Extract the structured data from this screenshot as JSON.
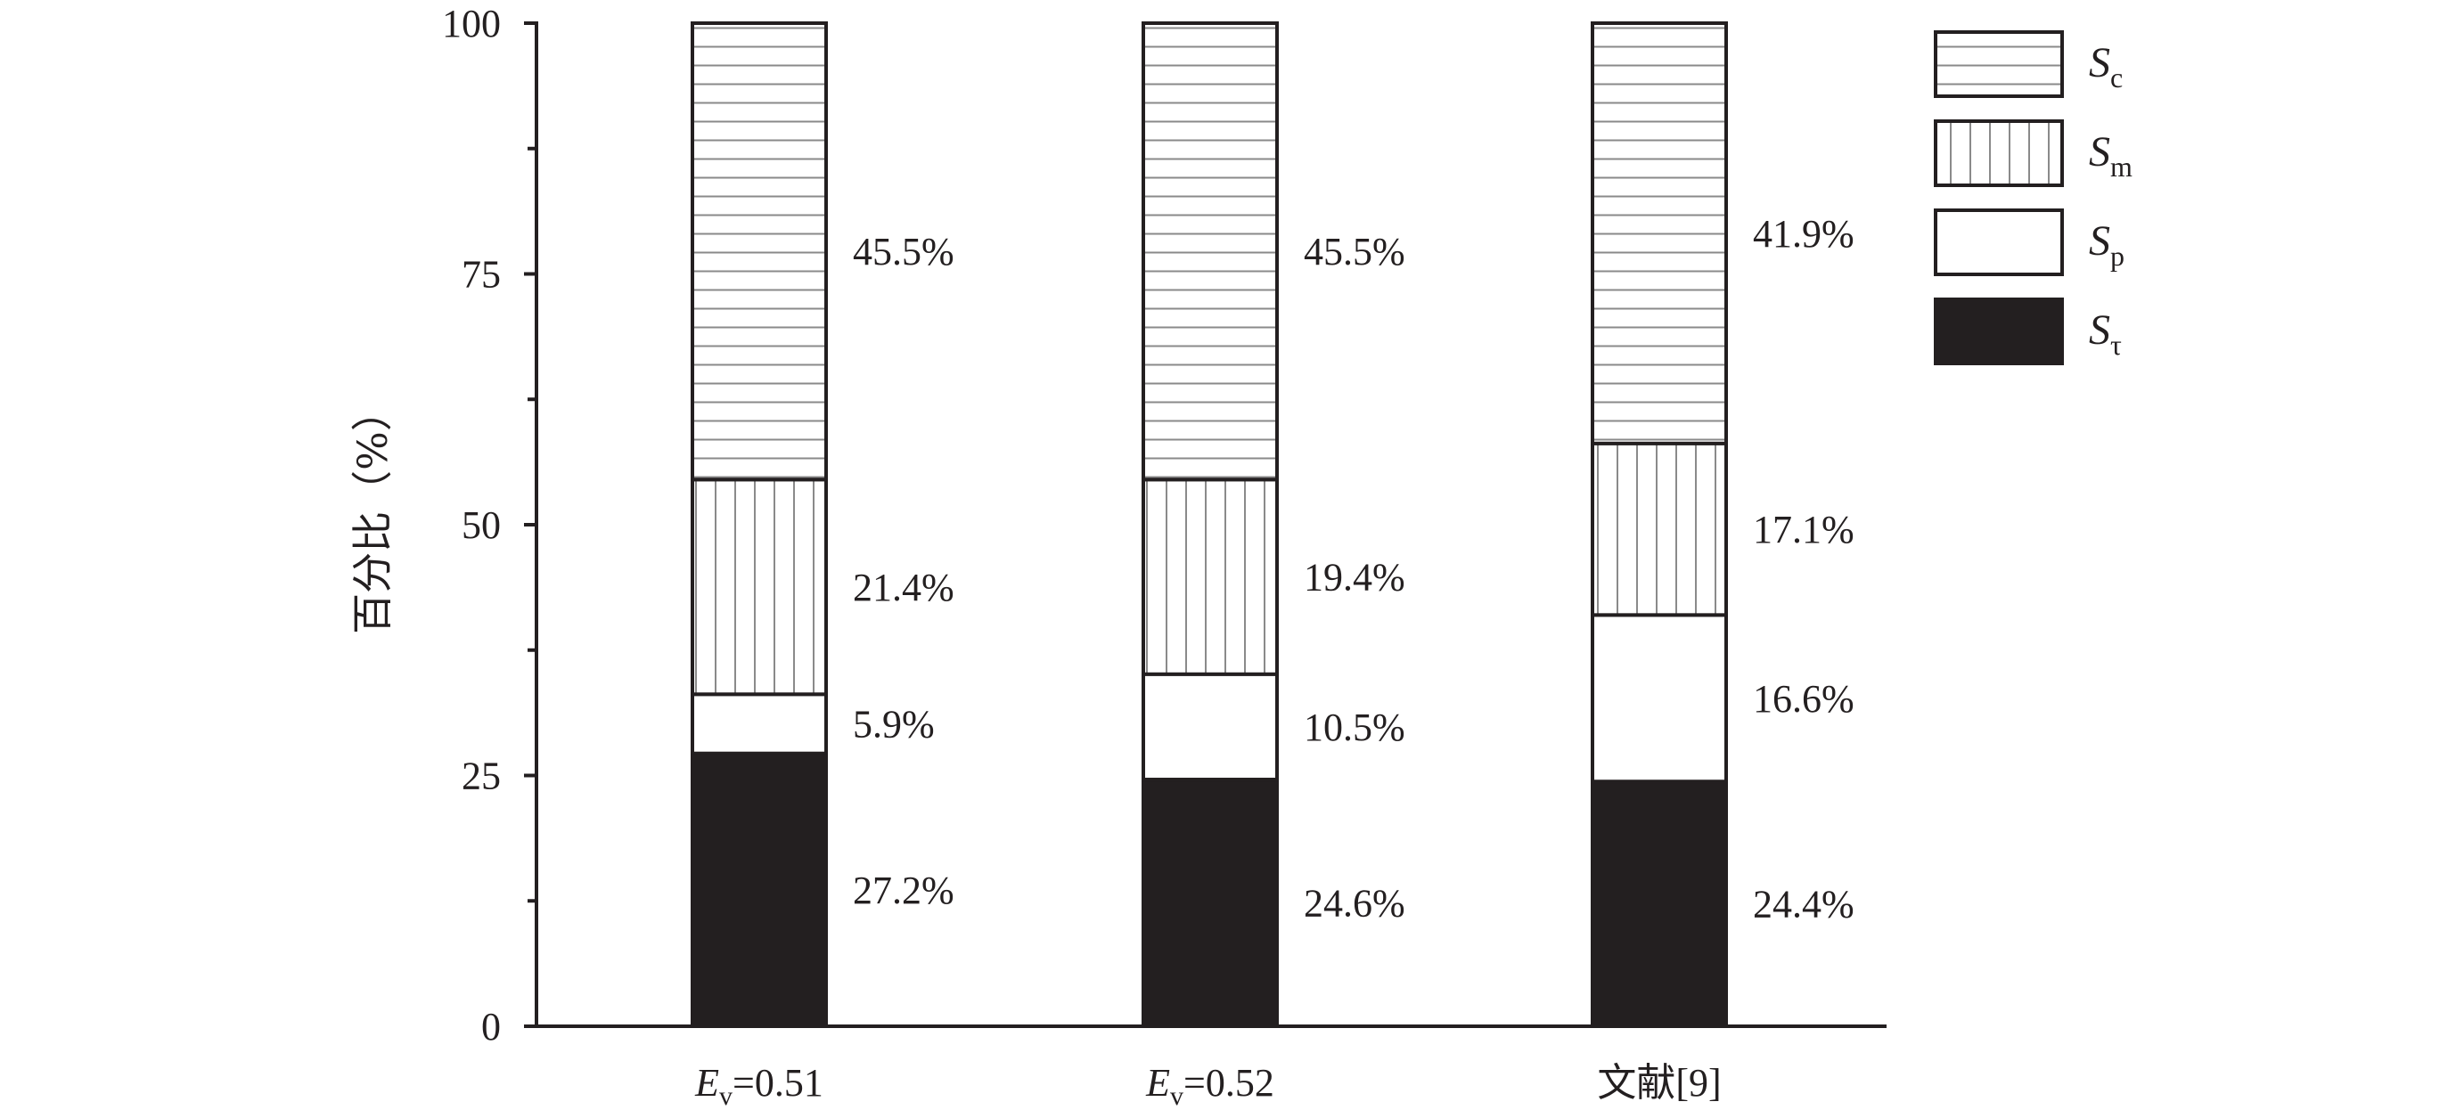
{
  "chart_data": {
    "type": "bar",
    "stacked": true,
    "categories": [
      {
        "main": "E",
        "sub": "v",
        "rest": "=0.51"
      },
      {
        "main": "E",
        "sub": "v",
        "rest": "=0.52"
      },
      {
        "main": "文献[9]",
        "sub": "",
        "rest": ""
      }
    ],
    "series": [
      {
        "key": "Stau",
        "name": "S",
        "sub": "τ",
        "pattern": "solid",
        "values": [
          27.2,
          24.6,
          24.4
        ],
        "labels": [
          "27.2%",
          "24.6%",
          "24.4%"
        ]
      },
      {
        "key": "Sp",
        "name": "S",
        "sub": "p",
        "pattern": "blank",
        "values": [
          5.9,
          10.5,
          16.6
        ],
        "labels": [
          "5.9%",
          "10.5%",
          "16.6%"
        ]
      },
      {
        "key": "Sm",
        "name": "S",
        "sub": "m",
        "pattern": "vertical-lines",
        "values": [
          21.4,
          19.4,
          17.1
        ],
        "labels": [
          "21.4%",
          "19.4%",
          "17.1%"
        ]
      },
      {
        "key": "Sc",
        "name": "S",
        "sub": "c",
        "pattern": "horizontal-lines",
        "values": [
          45.5,
          45.5,
          41.9
        ],
        "labels": [
          "45.5%",
          "45.5%",
          "41.9%"
        ]
      }
    ],
    "legend_order": [
      "Sc",
      "Sm",
      "Sp",
      "Stau"
    ],
    "ylabel": "百分比（%）",
    "xlabel": "",
    "ylim": [
      0,
      100
    ],
    "yticks": [
      0,
      25,
      50,
      75,
      100
    ],
    "grid": false,
    "legend_position": "top-right",
    "colors": {
      "ink": "#231f20",
      "hatch": "#8a8a8a",
      "background": "#ffffff"
    }
  }
}
